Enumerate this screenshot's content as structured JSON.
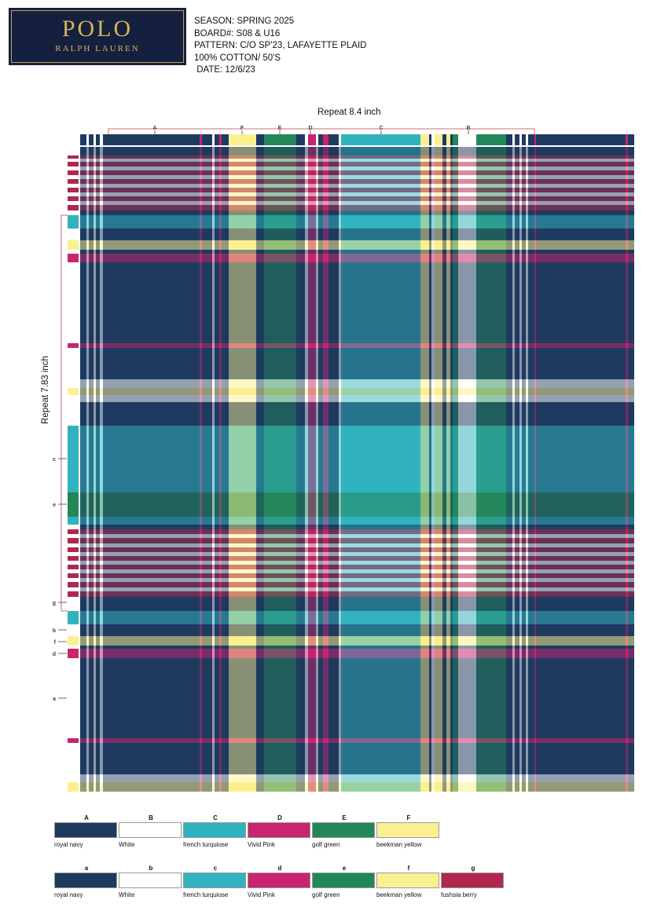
{
  "logo": {
    "brand": "POLO",
    "sub": "RALPH LAUREN"
  },
  "spec": [
    "SEASON: SPRING 2025",
    "BOARD#: S08 & U16",
    "PATTERN: C/O SP'23, LAFAYETTE PLAID",
    "100% COTTON/ 50'S",
    " DATE: 12/6/23"
  ],
  "repeat_horizontal": "Repeat 8.4 inch",
  "repeat_vertical": "Repeat 7.83 inch",
  "colors": {
    "navy": "#1e3a5f",
    "white": "#ffffff",
    "turquoise": "#31b3bf",
    "pink": "#c8246f",
    "green": "#23875a",
    "yellow": "#fbf08f",
    "berry": "#b0284f"
  },
  "warp_markers": [
    {
      "label": "A"
    },
    {
      "label": "F"
    },
    {
      "label": "E"
    },
    {
      "label": "D"
    },
    {
      "label": "C"
    },
    {
      "label": "B"
    }
  ],
  "weft_markers": [
    {
      "label": "c"
    },
    {
      "label": "e"
    },
    {
      "label": "g"
    },
    {
      "label": "b"
    },
    {
      "label": "f"
    },
    {
      "label": "d"
    },
    {
      "label": "a"
    }
  ],
  "swatch_row_1": [
    {
      "letter": "A",
      "name": "royal navy",
      "color": "#1e3a5f"
    },
    {
      "letter": "B",
      "name": "White",
      "color": "#ffffff"
    },
    {
      "letter": "C",
      "name": "french turquiose",
      "color": "#31b3bf"
    },
    {
      "letter": "D",
      "name": "Vivid Pink",
      "color": "#c8246f"
    },
    {
      "letter": "E",
      "name": "golf green",
      "color": "#23875a"
    },
    {
      "letter": "F",
      "name": "beekman yellow",
      "color": "#fbf08f"
    }
  ],
  "swatch_row_2": [
    {
      "letter": "a",
      "name": "royal navy",
      "color": "#1e3a5f"
    },
    {
      "letter": "b",
      "name": "White",
      "color": "#ffffff"
    },
    {
      "letter": "c",
      "name": "french turquiose",
      "color": "#31b3bf"
    },
    {
      "letter": "d",
      "name": "Vivid Pink",
      "color": "#c8246f"
    },
    {
      "letter": "e",
      "name": "golf green",
      "color": "#23875a"
    },
    {
      "letter": "f",
      "name": "beekman yellow",
      "color": "#fbf08f"
    },
    {
      "letter": "g",
      "name": "fushsia berry",
      "color": "#b0284f"
    }
  ]
}
